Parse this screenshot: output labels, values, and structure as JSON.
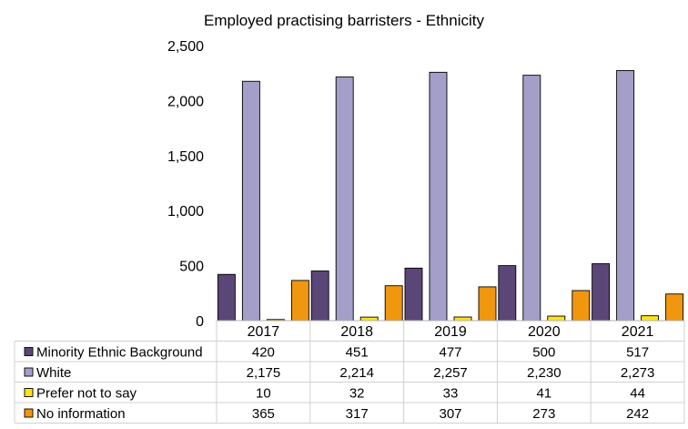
{
  "chart_data": {
    "type": "bar",
    "title": "Employed practising barristers - Ethnicity",
    "categories": [
      "2017",
      "2018",
      "2019",
      "2020",
      "2021"
    ],
    "ylim": [
      0,
      2500
    ],
    "yticks": [
      0,
      500,
      1000,
      1500,
      2000,
      2500
    ],
    "ytick_labels": [
      "0",
      "500",
      "1,000",
      "1,500",
      "2,000",
      "2,500"
    ],
    "grid": false,
    "legend": "data-table-below",
    "series": [
      {
        "name": "Minority Ethnic Background",
        "color": "#5b4777",
        "values": [
          420,
          451,
          477,
          500,
          517
        ],
        "labels": [
          "420",
          "451",
          "477",
          "500",
          "517"
        ]
      },
      {
        "name": "White",
        "color": "#a49fc8",
        "values": [
          2175,
          2214,
          2257,
          2230,
          2273
        ],
        "labels": [
          "2,175",
          "2,214",
          "2,257",
          "2,230",
          "2,273"
        ]
      },
      {
        "name": "Prefer not to say",
        "color": "#ffe11a",
        "values": [
          10,
          32,
          33,
          41,
          44
        ],
        "labels": [
          "10",
          "32",
          "33",
          "41",
          "44"
        ]
      },
      {
        "name": "No information",
        "color": "#f0960f",
        "values": [
          365,
          317,
          307,
          273,
          242
        ],
        "labels": [
          "365",
          "317",
          "307",
          "273",
          "242"
        ]
      }
    ]
  }
}
